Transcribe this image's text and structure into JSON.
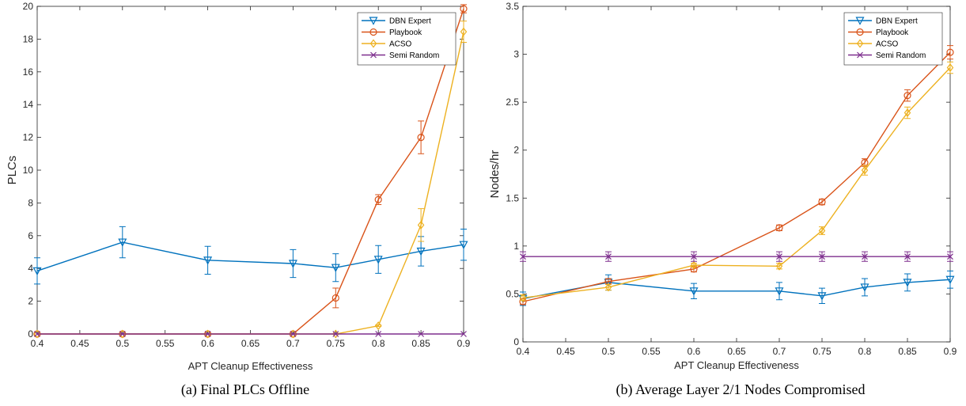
{
  "legend_names": [
    "DBN Expert",
    "Playbook",
    "ACSO",
    "Semi Random"
  ],
  "colors": {
    "DBN Expert": "#0072BD",
    "Playbook": "#D95319",
    "ACSO": "#EDB120",
    "Semi Random": "#7E2F8E"
  },
  "markers": {
    "DBN Expert": "triangle-down",
    "Playbook": "circle",
    "ACSO": "diamond",
    "Semi Random": "x"
  },
  "chart_data": [
    {
      "id": "a",
      "type": "line",
      "caption": "(a) Final PLCs Offline",
      "xlabel": "APT Cleanup Effectiveness",
      "ylabel": "PLCs",
      "xlim": [
        0.4,
        0.9
      ],
      "ylim": [
        0,
        20
      ],
      "xticks": [
        "0.4",
        "0.45",
        "0.5",
        "0.55",
        "0.6",
        "0.65",
        "0.7",
        "0.75",
        "0.8",
        "0.85",
        "0.9"
      ],
      "yticks": [
        "0",
        "2",
        "4",
        "6",
        "8",
        "10",
        "12",
        "14",
        "16",
        "18",
        "20"
      ],
      "legend_position": "top-right",
      "x": [
        0.4,
        0.5,
        0.6,
        0.7,
        0.75,
        0.8,
        0.85,
        0.9
      ],
      "series": [
        {
          "name": "DBN Expert",
          "values": [
            3.85,
            5.6,
            4.5,
            4.3,
            4.05,
            4.55,
            5.05,
            5.45
          ],
          "err": [
            0.8,
            0.95,
            0.85,
            0.85,
            0.85,
            0.85,
            0.9,
            0.95
          ]
        },
        {
          "name": "Playbook",
          "values": [
            0,
            0,
            0,
            0,
            2.2,
            8.2,
            12.0,
            19.85
          ],
          "err": [
            0,
            0,
            0,
            0,
            0.6,
            0.3,
            1.0,
            0.25
          ]
        },
        {
          "name": "ACSO",
          "values": [
            0,
            0,
            0,
            0,
            0,
            0.5,
            6.65,
            18.45
          ],
          "err": [
            0,
            0,
            0,
            0,
            0,
            0.05,
            1.0,
            0.65
          ]
        },
        {
          "name": "Semi Random",
          "values": [
            0,
            0,
            0,
            0,
            0,
            0,
            0,
            0
          ],
          "err": [
            0,
            0,
            0,
            0,
            0,
            0,
            0,
            0
          ]
        }
      ]
    },
    {
      "id": "b",
      "type": "line",
      "caption": "(b) Average Layer 2/1 Nodes Compromised",
      "xlabel": "APT Cleanup Effectiveness",
      "ylabel": "Nodes/hr",
      "xlim": [
        0.4,
        0.9
      ],
      "ylim": [
        0,
        3.5
      ],
      "xticks": [
        "0.4",
        "0.45",
        "0.5",
        "0.55",
        "0.6",
        "0.65",
        "0.7",
        "0.75",
        "0.8",
        "0.85",
        "0.9"
      ],
      "yticks": [
        "0",
        "0.5",
        "1",
        "1.5",
        "2",
        "2.5",
        "3",
        "3.5"
      ],
      "legend_position": "top-right",
      "x": [
        0.4,
        0.5,
        0.6,
        0.7,
        0.75,
        0.8,
        0.85,
        0.9
      ],
      "series": [
        {
          "name": "DBN Expert",
          "values": [
            0.45,
            0.62,
            0.53,
            0.53,
            0.48,
            0.57,
            0.62,
            0.65
          ],
          "err": [
            0.07,
            0.08,
            0.08,
            0.09,
            0.08,
            0.09,
            0.09,
            0.09
          ]
        },
        {
          "name": "Playbook",
          "values": [
            0.42,
            0.63,
            0.76,
            1.19,
            1.46,
            1.87,
            2.57,
            3.02
          ],
          "err": [
            0.03,
            0.03,
            0.03,
            0.03,
            0.03,
            0.04,
            0.06,
            0.07
          ]
        },
        {
          "name": "ACSO",
          "values": [
            0.46,
            0.57,
            0.8,
            0.79,
            1.16,
            1.79,
            2.39,
            2.86
          ],
          "err": [
            0.03,
            0.03,
            0.02,
            0.03,
            0.04,
            0.05,
            0.06,
            0.06
          ]
        },
        {
          "name": "Semi Random",
          "values": [
            0.89,
            0.89,
            0.89,
            0.89,
            0.89,
            0.89,
            0.89,
            0.89
          ],
          "err": [
            0.05,
            0.05,
            0.05,
            0.05,
            0.05,
            0.05,
            0.05,
            0.05
          ]
        }
      ]
    }
  ]
}
